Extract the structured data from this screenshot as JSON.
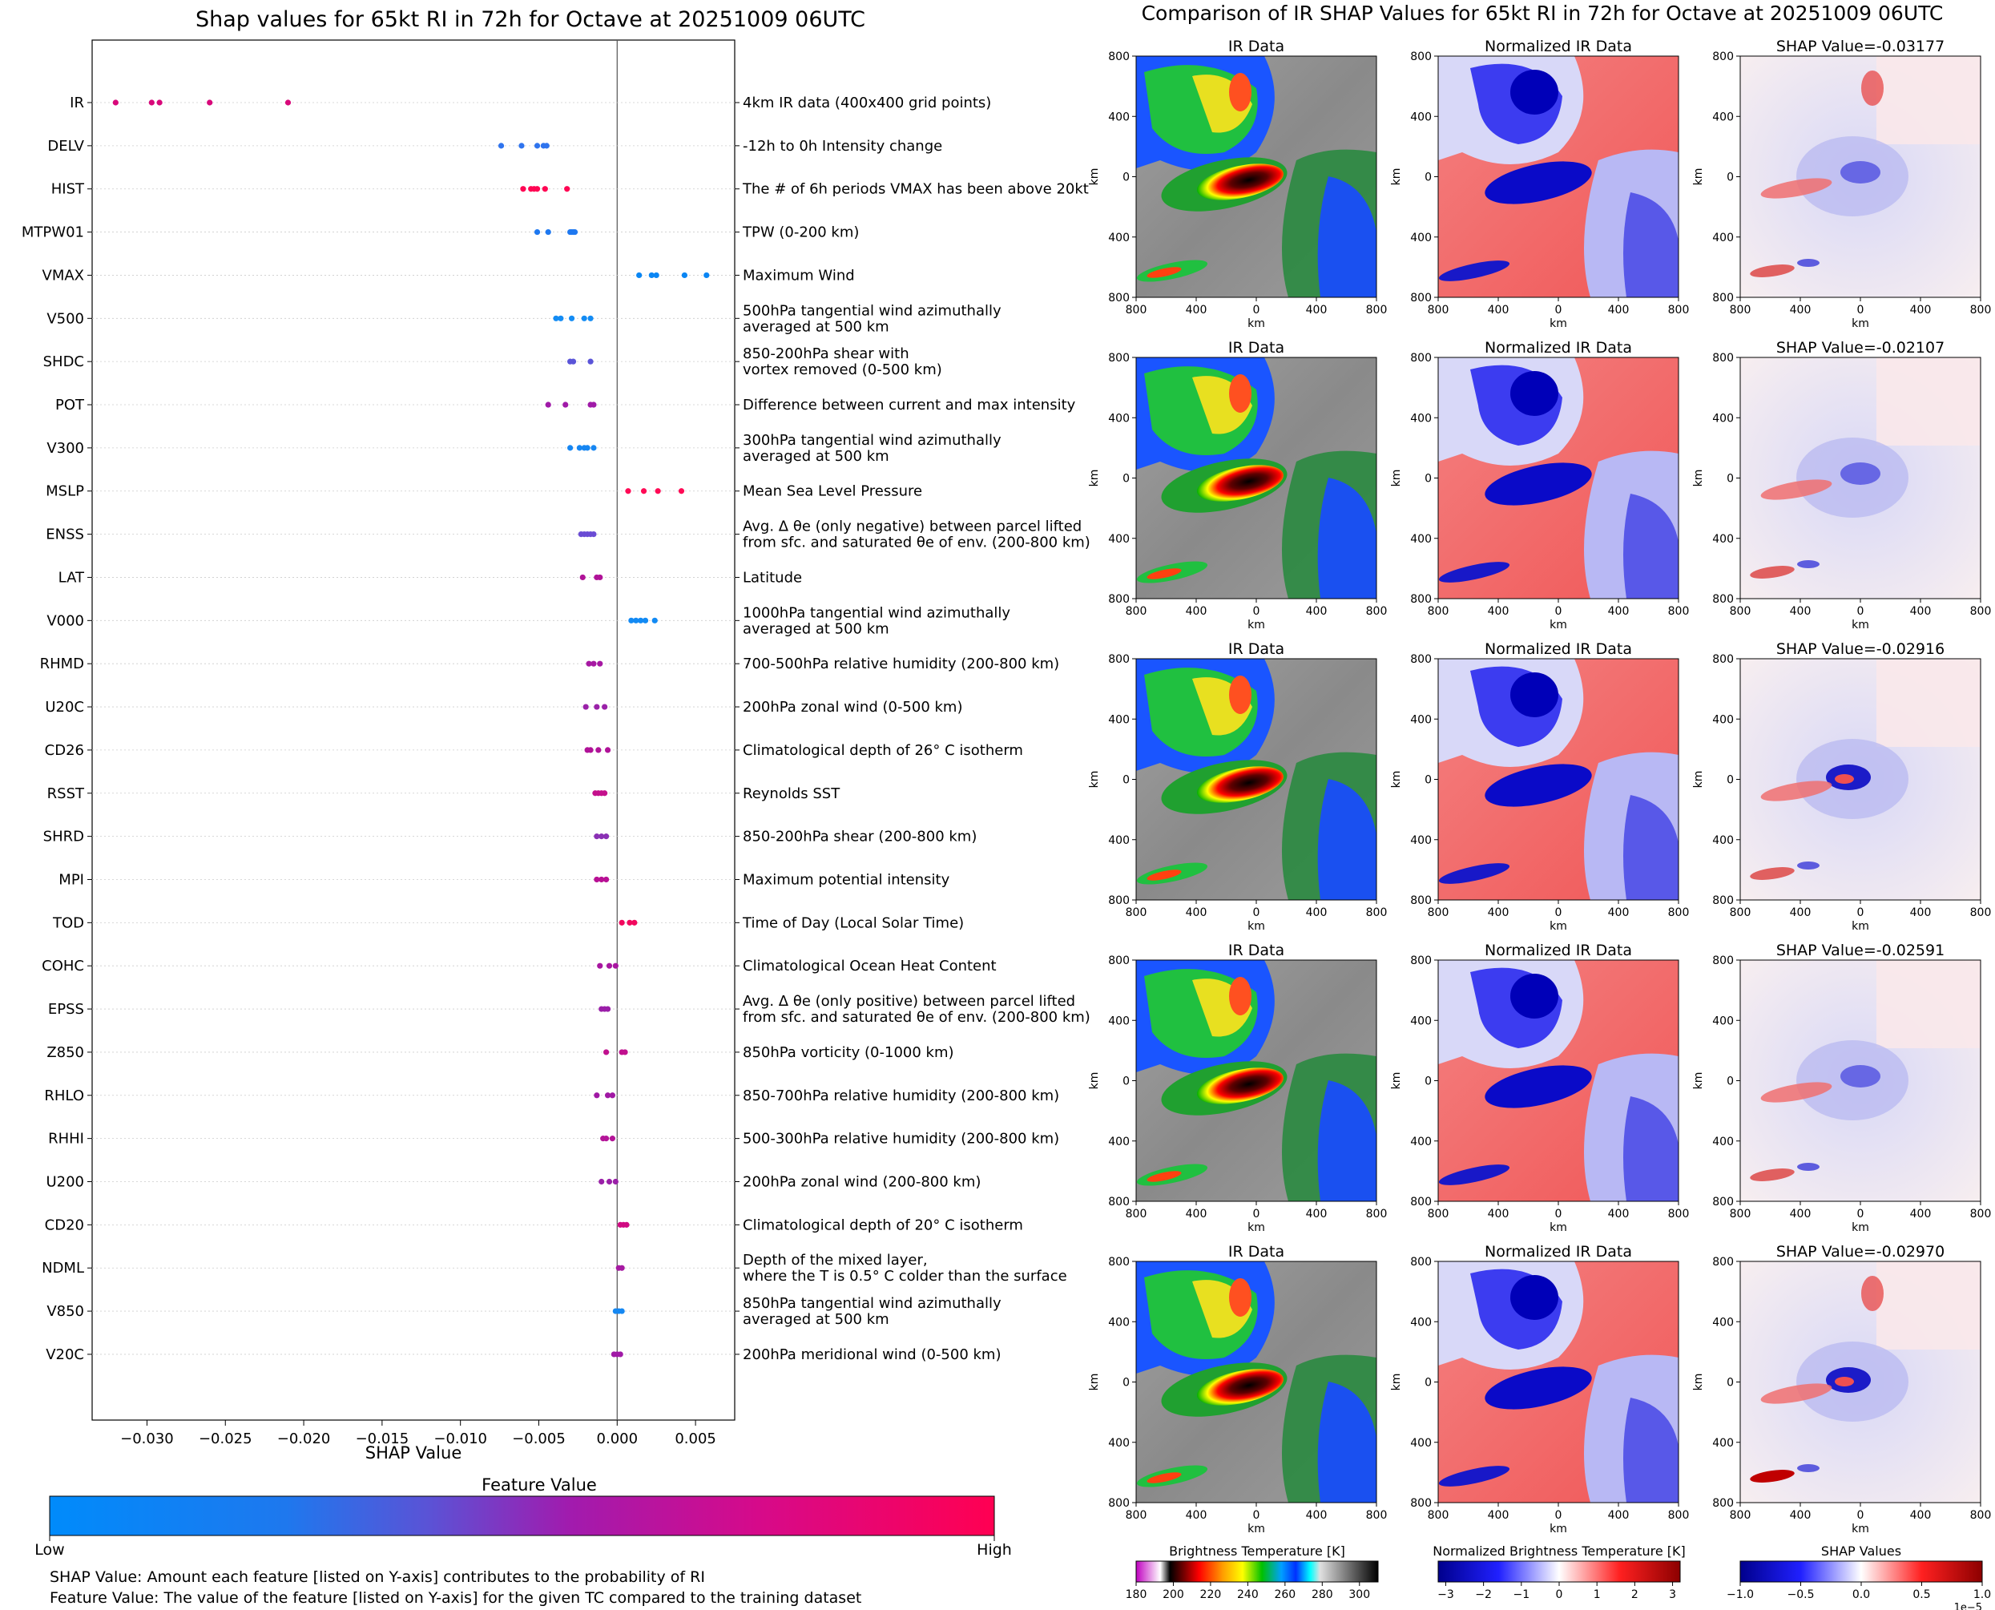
{
  "chart_data": [
    {
      "type": "scatter",
      "title": "Shap values for 65kt RI in 72h for Octave at 20251009 06UTC",
      "xlabel": "SHAP Value",
      "xlim": [
        -0.0335,
        0.0075
      ],
      "xticks": [
        -0.03,
        -0.025,
        -0.02,
        -0.015,
        -0.01,
        -0.005,
        0.0,
        0.005
      ],
      "xtick_labels": [
        "−0.030",
        "−0.025",
        "−0.020",
        "−0.015",
        "−0.010",
        "−0.005",
        "0.000",
        "0.005"
      ],
      "features": [
        {
          "name": "IR",
          "desc": [
            "4km IR data (400x400 grid points)"
          ],
          "color": "#d8087a",
          "values": [
            -0.032,
            -0.0297,
            -0.0292,
            -0.026,
            -0.021
          ]
        },
        {
          "name": "DELV",
          "desc": [
            "-12h to 0h Intensity change"
          ],
          "color": "#2f74ee",
          "values": [
            -0.0074,
            -0.0061,
            -0.0051,
            -0.0047,
            -0.0045
          ]
        },
        {
          "name": "HIST",
          "desc": [
            "The # of 6h periods VMAX has been above 20kt"
          ],
          "color": "#ff0553",
          "values": [
            -0.006,
            -0.0055,
            -0.0053,
            -0.0051,
            -0.0046,
            -0.0032
          ]
        },
        {
          "name": "MTPW01",
          "desc": [
            "TPW (0-200 km)"
          ],
          "color": "#1e78f0",
          "values": [
            -0.0051,
            -0.0044,
            -0.003,
            -0.0029,
            -0.0028,
            -0.0027
          ]
        },
        {
          "name": "VMAX",
          "desc": [
            "Maximum Wind"
          ],
          "color": "#0a86f4",
          "values": [
            0.0014,
            0.0022,
            0.0025,
            0.0043,
            0.0057
          ]
        },
        {
          "name": "V500",
          "desc": [
            "500hPa tangential wind azimuthally",
            "averaged at 500 km"
          ],
          "color": "#148cf4",
          "values": [
            -0.0039,
            -0.0036,
            -0.0029,
            -0.0021,
            -0.0017
          ]
        },
        {
          "name": "SHDC",
          "desc": [
            "850-200hPa shear with",
            "vortex removed (0-500 km)"
          ],
          "color": "#5a54d8",
          "values": [
            -0.003,
            -0.0028,
            -0.0017
          ]
        },
        {
          "name": "POT",
          "desc": [
            "Difference between current and max intensity"
          ],
          "color": "#a01aa8",
          "values": [
            -0.0044,
            -0.0033,
            -0.0017,
            -0.0015
          ]
        },
        {
          "name": "V300",
          "desc": [
            "300hPa tangential wind azimuthally",
            "averaged at 500 km"
          ],
          "color": "#1686f2",
          "values": [
            -0.003,
            -0.0024,
            -0.0021,
            -0.0019,
            -0.0015
          ]
        },
        {
          "name": "MSLP",
          "desc": [
            "Mean Sea Level Pressure"
          ],
          "color": "#ff0a55",
          "values": [
            0.0007,
            0.0017,
            0.0026,
            0.0041
          ]
        },
        {
          "name": "ENSS",
          "desc": [
            "Avg. Δ θe (only negative) between parcel lifted",
            "from sfc. and saturated θe of env. (200-800 km)"
          ],
          "color": "#6a4cd4",
          "values": [
            -0.0023,
            -0.0021,
            -0.0019,
            -0.0017,
            -0.0015
          ]
        },
        {
          "name": "LAT",
          "desc": [
            "Latitude"
          ],
          "color": "#b01298",
          "values": [
            -0.0022,
            -0.0013,
            -0.0011
          ]
        },
        {
          "name": "V000",
          "desc": [
            "1000hPa tangential wind azimuthally",
            "averaged at 500 km"
          ],
          "color": "#128af4",
          "values": [
            0.0009,
            0.0012,
            0.0015,
            0.0018,
            0.0024
          ]
        },
        {
          "name": "RHMD",
          "desc": [
            "700-500hPa relative humidity (200-800 km)"
          ],
          "color": "#a618a2",
          "values": [
            -0.0018,
            -0.0015,
            -0.0011
          ]
        },
        {
          "name": "U20C",
          "desc": [
            "200hPa zonal wind (0-500 km)"
          ],
          "color": "#9a22a8",
          "values": [
            -0.002,
            -0.0013,
            -0.0008
          ]
        },
        {
          "name": "CD26",
          "desc": [
            "Climatological depth of 26° C isotherm"
          ],
          "color": "#b01298",
          "values": [
            -0.0019,
            -0.0017,
            -0.0012,
            -0.0006
          ]
        },
        {
          "name": "RSST",
          "desc": [
            "Reynolds SST"
          ],
          "color": "#c4108c",
          "values": [
            -0.0014,
            -0.0012,
            -0.001,
            -0.0008
          ]
        },
        {
          "name": "SHRD",
          "desc": [
            "850-200hPa shear (200-800 km)"
          ],
          "color": "#8a30b4",
          "values": [
            -0.0013,
            -0.001,
            -0.0007
          ]
        },
        {
          "name": "MPI",
          "desc": [
            "Maximum potential intensity"
          ],
          "color": "#b81094",
          "values": [
            -0.0013,
            -0.001,
            -0.0007
          ]
        },
        {
          "name": "TOD",
          "desc": [
            "Time of Day (Local Solar Time)"
          ],
          "color": "#f2085e",
          "values": [
            0.0003,
            0.0008,
            0.0011
          ]
        },
        {
          "name": "COHC",
          "desc": [
            "Climatological Ocean Heat Content"
          ],
          "color": "#a816a0",
          "values": [
            -0.0011,
            -0.0005,
            -0.0001
          ]
        },
        {
          "name": "EPSS",
          "desc": [
            "Avg. Δ θe (only positive) between parcel lifted",
            "from sfc. and saturated θe of env. (200-800 km)"
          ],
          "color": "#9a1ea8",
          "values": [
            -0.001,
            -0.0008,
            -0.0006
          ]
        },
        {
          "name": "Z850",
          "desc": [
            "850hPa vorticity (0-1000 km)"
          ],
          "color": "#c0108e",
          "values": [
            -0.0007,
            0.0003,
            0.0005
          ]
        },
        {
          "name": "RHLO",
          "desc": [
            "850-700hPa relative humidity (200-800 km)"
          ],
          "color": "#a018a4",
          "values": [
            -0.0013,
            -0.0006,
            -0.0003
          ]
        },
        {
          "name": "RHHI",
          "desc": [
            "500-300hPa relative humidity (200-800 km)"
          ],
          "color": "#b41498",
          "values": [
            -0.0009,
            -0.0007,
            -0.0003
          ]
        },
        {
          "name": "U200",
          "desc": [
            "200hPa zonal wind (200-800 km)"
          ],
          "color": "#9a20a8",
          "values": [
            -0.001,
            -0.0005,
            -0.0001
          ]
        },
        {
          "name": "CD20",
          "desc": [
            "Climatological depth of 20° C isotherm"
          ],
          "color": "#d00a82",
          "values": [
            0.0002,
            0.0004,
            0.0006
          ]
        },
        {
          "name": "NDML",
          "desc": [
            "Depth of the mixed layer,",
            "where the T is 0.5° C colder than the surface"
          ],
          "color": "#a61aa2",
          "values": [
            0.0001,
            0.0003
          ]
        },
        {
          "name": "V850",
          "desc": [
            "850hPa tangential wind azimuthally",
            "averaged at 500 km"
          ],
          "color": "#1688f2",
          "values": [
            -0.0001,
            0.0001,
            0.0003
          ]
        },
        {
          "name": "V20C",
          "desc": [
            "200hPa meridional wind (0-500 km)"
          ],
          "color": "#a01aa6",
          "values": [
            -0.0002,
            0.0,
            0.0002
          ]
        }
      ],
      "colorbar": {
        "title": "Feature Value",
        "low_label": "Low",
        "high_label": "High",
        "colors": [
          "#008bfb",
          "#5a53d6",
          "#a11bae",
          "#d60a8a",
          "#ff0052"
        ]
      },
      "notes": [
        "SHAP Value: Amount each feature [listed on Y-axis] contributes to the probability of RI",
        "Feature Value: The value of the feature [listed on Y-axis] for the given TC compared to the training dataset"
      ]
    },
    {
      "type": "heatmap",
      "title": "Comparison of IR SHAP Values for 65kt RI in 72h for Octave at 20251009 06UTC",
      "panel_titles": [
        "IR Data",
        "Normalized IR Data"
      ],
      "shap_titles": [
        "SHAP Value=-0.03177",
        "SHAP Value=-0.02107",
        "SHAP Value=-0.02916",
        "SHAP Value=-0.02591",
        "SHAP Value=-0.02970"
      ],
      "axis_label": "km",
      "x_ticks": [
        "800",
        "400",
        "0",
        "400",
        "800"
      ],
      "y_ticks": [
        "800",
        "400",
        "0",
        "400",
        "800"
      ],
      "colorbars": [
        {
          "title": "Brightness Temperature [K]",
          "ticks": [
            "180",
            "200",
            "220",
            "240",
            "260",
            "280",
            "300"
          ],
          "range": [
            180,
            310
          ]
        },
        {
          "title": "Normalized Brightness Temperature [K]",
          "ticks": [
            "−3",
            "−2",
            "−1",
            "0",
            "1",
            "2",
            "3"
          ],
          "range": [
            -3.2,
            3.2
          ]
        },
        {
          "title": "SHAP Values",
          "ticks": [
            "−1.0",
            "−0.5",
            "0.0",
            "0.5",
            "1.0"
          ],
          "range": [
            -1,
            1
          ],
          "offset_label": "1e−5"
        }
      ]
    }
  ]
}
